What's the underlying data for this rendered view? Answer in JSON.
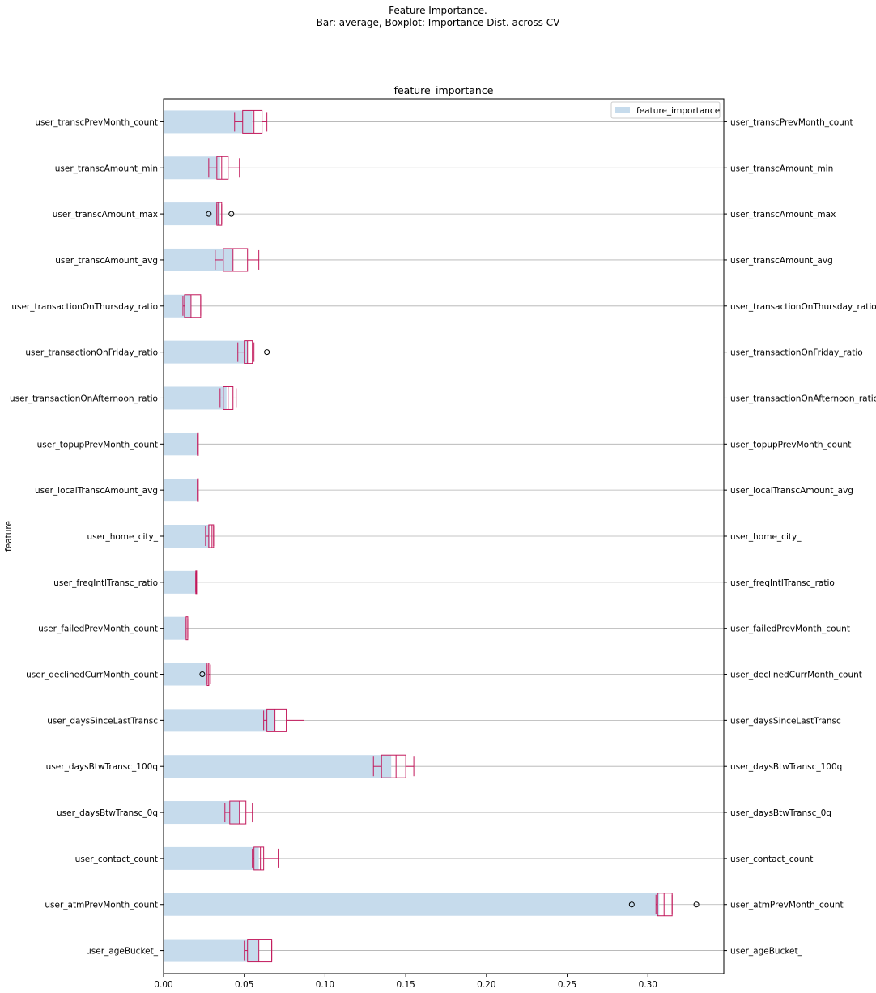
{
  "figure": {
    "suptitle_line1": "Feature Importance.",
    "suptitle_line2": "Bar: average, Boxplot: Importance Dist. across CV"
  },
  "colors": {
    "bar": "#c6dbec",
    "box": "#c2185b",
    "grid": "#b0b0b0",
    "axis": "#000000"
  },
  "chart_data": {
    "type": "bar",
    "orientation": "horizontal",
    "title": "feature_importance",
    "ylabel": "feature",
    "xlabel": "",
    "xlim": [
      0,
      0.347
    ],
    "xticks": [
      "0.00",
      "0.05",
      "0.10",
      "0.15",
      "0.20",
      "0.25",
      "0.30"
    ],
    "grid": "horizontal",
    "legend_position": "top-right",
    "legend": [
      "feature_importance"
    ],
    "categories": [
      "user_transcPrevMonth_count",
      "user_transcAmount_min",
      "user_transcAmount_max",
      "user_transcAmount_avg",
      "user_transactionOnThursday_ratio",
      "user_transactionOnFriday_ratio",
      "user_transactionOnAfternoon_ratio",
      "user_topupPrevMonth_count",
      "user_localTranscAmount_avg",
      "user_home_city_",
      "user_freqIntlTransc_ratio",
      "user_failedPrevMonth_count",
      "user_declinedCurrMonth_count",
      "user_daysSinceLastTransc",
      "user_daysBtwTransc_100q",
      "user_daysBtwTransc_0q",
      "user_contact_count",
      "user_atmPrevMonth_count",
      "user_ageBucket_"
    ],
    "series": [
      {
        "name": "feature_importance",
        "values": [
          0.055,
          0.035,
          0.035,
          0.043,
          0.017,
          0.052,
          0.039,
          0.021,
          0.021,
          0.029,
          0.02,
          0.014,
          0.027,
          0.069,
          0.141,
          0.047,
          0.059,
          0.307,
          0.059
        ]
      }
    ],
    "boxplots": [
      {
        "whisker_low": 0.044,
        "q1": 0.049,
        "median": 0.056,
        "q3": 0.061,
        "whisker_high": 0.064,
        "outliers": []
      },
      {
        "whisker_low": 0.028,
        "q1": 0.033,
        "median": 0.036,
        "q3": 0.04,
        "whisker_high": 0.047,
        "outliers": []
      },
      {
        "whisker_low": 0.033,
        "q1": 0.033,
        "median": 0.034,
        "q3": 0.036,
        "whisker_high": 0.036,
        "outliers": [
          0.028,
          0.042
        ]
      },
      {
        "whisker_low": 0.032,
        "q1": 0.037,
        "median": 0.043,
        "q3": 0.052,
        "whisker_high": 0.059,
        "outliers": []
      },
      {
        "whisker_low": 0.012,
        "q1": 0.013,
        "median": 0.017,
        "q3": 0.023,
        "whisker_high": 0.023,
        "outliers": []
      },
      {
        "whisker_low": 0.046,
        "q1": 0.05,
        "median": 0.052,
        "q3": 0.055,
        "whisker_high": 0.056,
        "outliers": [
          0.064
        ]
      },
      {
        "whisker_low": 0.035,
        "q1": 0.037,
        "median": 0.04,
        "q3": 0.043,
        "whisker_high": 0.045,
        "outliers": []
      },
      {
        "whisker_low": 0.021,
        "q1": 0.021,
        "median": 0.021,
        "q3": 0.021,
        "whisker_high": 0.021,
        "outliers": []
      },
      {
        "whisker_low": 0.021,
        "q1": 0.021,
        "median": 0.021,
        "q3": 0.021,
        "whisker_high": 0.021,
        "outliers": []
      },
      {
        "whisker_low": 0.026,
        "q1": 0.028,
        "median": 0.03,
        "q3": 0.031,
        "whisker_high": 0.031,
        "outliers": []
      },
      {
        "whisker_low": 0.02,
        "q1": 0.02,
        "median": 0.02,
        "q3": 0.02,
        "whisker_high": 0.02,
        "outliers": []
      },
      {
        "whisker_low": 0.014,
        "q1": 0.014,
        "median": 0.014,
        "q3": 0.015,
        "whisker_high": 0.015,
        "outliers": []
      },
      {
        "whisker_low": 0.027,
        "q1": 0.027,
        "median": 0.028,
        "q3": 0.028,
        "whisker_high": 0.029,
        "outliers": [
          0.024
        ]
      },
      {
        "whisker_low": 0.062,
        "q1": 0.064,
        "median": 0.069,
        "q3": 0.076,
        "whisker_high": 0.087,
        "outliers": []
      },
      {
        "whisker_low": 0.13,
        "q1": 0.135,
        "median": 0.144,
        "q3": 0.15,
        "whisker_high": 0.155,
        "outliers": []
      },
      {
        "whisker_low": 0.038,
        "q1": 0.041,
        "median": 0.047,
        "q3": 0.051,
        "whisker_high": 0.055,
        "outliers": []
      },
      {
        "whisker_low": 0.055,
        "q1": 0.056,
        "median": 0.06,
        "q3": 0.062,
        "whisker_high": 0.071,
        "outliers": []
      },
      {
        "whisker_low": 0.305,
        "q1": 0.306,
        "median": 0.31,
        "q3": 0.315,
        "whisker_high": 0.315,
        "outliers": [
          0.29,
          0.33
        ]
      },
      {
        "whisker_low": 0.05,
        "q1": 0.052,
        "median": 0.059,
        "q3": 0.067,
        "whisker_high": 0.067,
        "outliers": []
      }
    ]
  }
}
